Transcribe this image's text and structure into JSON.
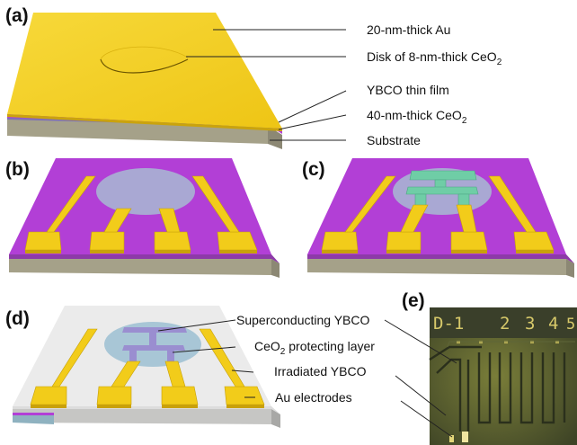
{
  "panels": {
    "a": "(a)",
    "b": "(b)",
    "c": "(c)",
    "d": "(d)",
    "e": "(e)"
  },
  "panel_a": {
    "au_label": "20-nm-thick Au",
    "disk_label_prefix": "Disk of 8-nm-thick CeO",
    "disk_label_sub": "2",
    "ybco_label": "YBCO thin film",
    "ceo2_label_prefix": "40-nm-thick CeO",
    "ceo2_label_sub": "2",
    "substrate_label": "Substrate"
  },
  "panel_d": {
    "sc_label": "Superconducting YBCO",
    "protect_prefix": "CeO",
    "protect_sub": "2",
    "protect_suffix": " protecting layer",
    "irradiated_label": "Irradiated YBCO",
    "electrodes_label": "Au electrodes"
  },
  "panel_e": {
    "device_label": "D-",
    "numbers": [
      "1",
      "2",
      "3",
      "4",
      "5"
    ]
  },
  "colors": {
    "gold": "#f2cc1a",
    "purple": "#b23fd6",
    "substrate": "#a9a58f",
    "disk": "#a9a8d3",
    "ybco_green": "#6fcda6",
    "irradiated": "#e6e6e6"
  }
}
